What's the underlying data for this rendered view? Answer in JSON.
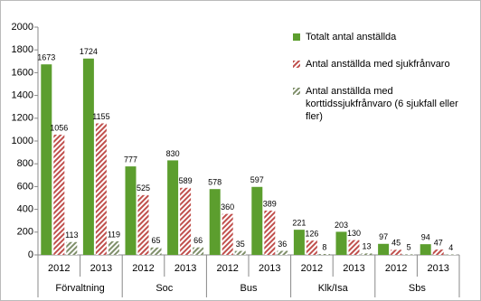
{
  "chart_data": {
    "type": "bar",
    "categories": [
      "2012",
      "2013",
      "2012",
      "2013",
      "2012",
      "2013",
      "2012",
      "2013",
      "2012",
      "2013"
    ],
    "category_groups": [
      "Förvaltning",
      "Soc",
      "Bus",
      "Klk/Isa",
      "Sbs"
    ],
    "series": [
      {
        "name": "Totalt antal anställda",
        "color": "#5c9e2e",
        "fill_style": "solid",
        "values": [
          1673,
          1724,
          777,
          830,
          578,
          597,
          221,
          203,
          97,
          94
        ]
      },
      {
        "name": "Antal anställda med sjukfrånvaro",
        "color": "#c0504d",
        "fill_style": "hatch",
        "values": [
          1056,
          1155,
          525,
          589,
          360,
          389,
          126,
          130,
          45,
          47
        ]
      },
      {
        "name": "Antal anställda med korttidssjukfrånvaro (6 sjukfall eller fler)",
        "color": "#7f8f6a",
        "fill_style": "hatch",
        "values": [
          113,
          119,
          65,
          66,
          35,
          36,
          8,
          13,
          5,
          4
        ]
      }
    ],
    "ylim": [
      0,
      2000
    ],
    "yticks": [
      0,
      200,
      400,
      600,
      800,
      1000,
      1200,
      1400,
      1600,
      1800,
      2000
    ],
    "grid": false,
    "legend": "right"
  }
}
